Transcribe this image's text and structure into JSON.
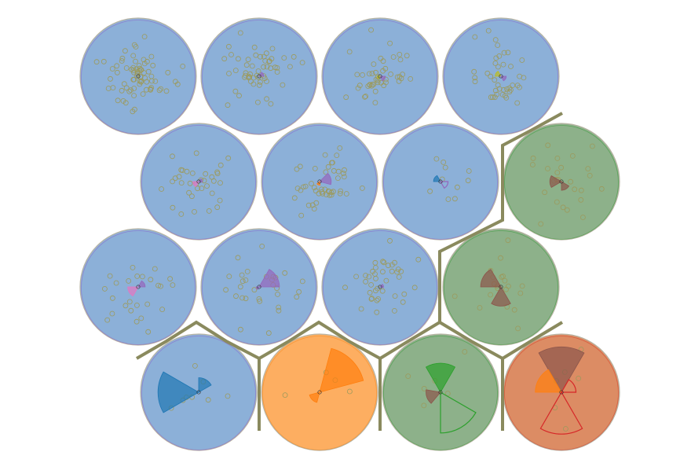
{
  "chart_data": {
    "type": "hexagonal-map-of-wind-rose-glyphs",
    "title": "",
    "colors": {
      "blue": "#8cb0d8",
      "orange": "#fdae61",
      "green": "#8db18a",
      "red": "#dc8c64",
      "boundary": "#8a8a5e",
      "scatter_marker": "#9c9a5c"
    },
    "sector_palette": [
      "#1f77b4",
      "#ff7f0e",
      "#2ca02c",
      "#d62728",
      "#9467bd",
      "#8c564b",
      "#e377c2",
      "#7f7f7f",
      "#bcbd22",
      "#17becf"
    ],
    "grid": [
      {
        "row": 0,
        "col": 0,
        "region": "blue",
        "points": 75,
        "sectors": []
      },
      {
        "row": 0,
        "col": 1,
        "region": "blue",
        "points": 55,
        "sectors": [
          {
            "angle_deg": 30,
            "radius": 0.08,
            "color_index": 4
          }
        ]
      },
      {
        "row": 0,
        "col": 2,
        "region": "blue",
        "points": 45,
        "sectors": [
          {
            "angle_deg": 330,
            "radius": 0.09,
            "color_index": 4
          },
          {
            "angle_deg": 200,
            "radius": 0.05,
            "color_index": 8
          }
        ]
      },
      {
        "row": 0,
        "col": 3,
        "region": "blue",
        "points": 40,
        "sectors": [
          {
            "angle_deg": 150,
            "radius": 0.1,
            "color_index": 8
          },
          {
            "angle_deg": 330,
            "radius": 0.09,
            "color_index": 4
          }
        ]
      },
      {
        "row": 1,
        "col": 0,
        "region": "blue",
        "points": 35,
        "sectors": [
          {
            "angle_deg": 210,
            "radius": 0.1,
            "color_index": 6
          },
          {
            "angle_deg": 20,
            "radius": 0.06,
            "color_index": 4
          }
        ]
      },
      {
        "row": 1,
        "col": 1,
        "region": "blue",
        "points": 45,
        "sectors": [
          {
            "angle_deg": 15,
            "radius": 0.2,
            "color_index": 4
          },
          {
            "angle_deg": 250,
            "radius": 0.06,
            "color_index": 1
          }
        ]
      },
      {
        "row": 1,
        "col": 2,
        "region": "blue",
        "points": 10,
        "sectors": [
          {
            "angle_deg": 150,
            "radius": 0.12,
            "color_index": 0
          },
          {
            "angle_deg": 330,
            "radius": 0.13,
            "color_index": 4,
            "outline": true
          }
        ]
      },
      {
        "row": 1,
        "col": 3,
        "region": "green",
        "points": 25,
        "sectors": [
          {
            "angle_deg": 180,
            "radius": 0.2,
            "color_index": 5
          },
          {
            "angle_deg": 300,
            "radius": 0.15,
            "color_index": 5
          }
        ]
      },
      {
        "row": 2,
        "col": 0,
        "region": "blue",
        "points": 25,
        "sectors": [
          {
            "angle_deg": 210,
            "radius": 0.18,
            "color_index": 6
          },
          {
            "angle_deg": 30,
            "radius": 0.12,
            "color_index": 4
          }
        ]
      },
      {
        "row": 2,
        "col": 1,
        "region": "blue",
        "points": 30,
        "sectors": [
          {
            "angle_deg": 30,
            "radius": 0.35,
            "color_index": 4
          },
          {
            "angle_deg": 210,
            "radius": 0.05,
            "color_index": 4
          }
        ]
      },
      {
        "row": 2,
        "col": 2,
        "region": "blue",
        "points": 40,
        "sectors": [
          {
            "angle_deg": 20,
            "radius": 0.06,
            "color_index": 4
          }
        ]
      },
      {
        "row": 2,
        "col": 3,
        "region": "green",
        "points": 20,
        "sectors": [
          {
            "angle_deg": 150,
            "radius": 0.35,
            "color_index": 5
          },
          {
            "angle_deg": 270,
            "radius": 0.33,
            "color_index": 5
          }
        ]
      },
      {
        "row": 3,
        "col": 0,
        "region": "blue",
        "points": 8,
        "sectors": [
          {
            "angle_deg": 180,
            "radius": 0.7,
            "color_index": 0
          },
          {
            "angle_deg": 60,
            "radius": 0.25,
            "color_index": 0
          }
        ]
      },
      {
        "row": 3,
        "col": 1,
        "region": "orange",
        "points": 4,
        "sectors": [
          {
            "angle_deg": 45,
            "radius": 0.78,
            "color_index": 1
          },
          {
            "angle_deg": 225,
            "radius": 0.18,
            "color_index": 1
          }
        ]
      },
      {
        "row": 3,
        "col": 2,
        "region": "green",
        "points": 6,
        "sectors": [
          {
            "angle_deg": 90,
            "radius": 0.5,
            "color_index": 2
          },
          {
            "angle_deg": 300,
            "radius": 0.7,
            "color_index": 2,
            "outline": true
          },
          {
            "angle_deg": 200,
            "radius": 0.25,
            "color_index": 5
          }
        ]
      },
      {
        "row": 3,
        "col": 3,
        "region": "red",
        "points": 6,
        "sectors": [
          {
            "angle_deg": 90,
            "radius": 0.78,
            "color_index": 5
          },
          {
            "angle_deg": 150,
            "radius": 0.45,
            "color_index": 1
          },
          {
            "angle_deg": 270,
            "radius": 0.72,
            "color_index": 3,
            "outline": true
          },
          {
            "angle_deg": 30,
            "radius": 0.25,
            "color_index": 3,
            "outline": true
          }
        ]
      }
    ],
    "boundaries": [
      {
        "from": "blue",
        "to": "green"
      },
      {
        "from": "blue",
        "to": "orange"
      },
      {
        "from": "orange",
        "to": "green"
      },
      {
        "from": "green",
        "to": "red"
      }
    ],
    "grid_on": false,
    "legend": "none"
  }
}
